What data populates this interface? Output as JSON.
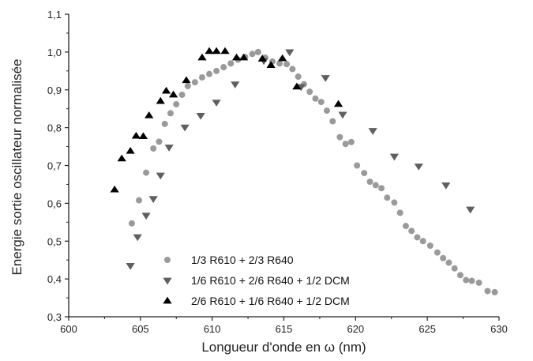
{
  "chart_data": {
    "type": "scatter",
    "xlabel": "Longueur d'onde en ω (nm)",
    "ylabel": "Energie sortie oscillateur normalisée",
    "xlim": [
      600,
      630
    ],
    "ylim": [
      0.3,
      1.1
    ],
    "x_ticks": [
      "600",
      "605",
      "610",
      "615",
      "620",
      "625",
      "630"
    ],
    "y_ticks": [
      "0,3",
      "0,4",
      "0,5",
      "0,6",
      "0,7",
      "0,8",
      "0,9",
      "1,0",
      "1,1"
    ],
    "grid": false,
    "legend_position": "bottom-center",
    "series": [
      {
        "name": "1/3 R610 + 2/3 R640",
        "marker": "circle",
        "color": "#9a9a9a",
        "points": [
          [
            604.4,
            0.547
          ],
          [
            604.9,
            0.608
          ],
          [
            605.4,
            0.681
          ],
          [
            605.9,
            0.745
          ],
          [
            606.3,
            0.763
          ],
          [
            606.7,
            0.81
          ],
          [
            607.1,
            0.838
          ],
          [
            607.5,
            0.862
          ],
          [
            607.9,
            0.887
          ],
          [
            608.3,
            0.91
          ],
          [
            608.8,
            0.92
          ],
          [
            609.3,
            0.933
          ],
          [
            609.8,
            0.942
          ],
          [
            610.3,
            0.95
          ],
          [
            610.8,
            0.96
          ],
          [
            611.3,
            0.97
          ],
          [
            611.8,
            0.98
          ],
          [
            612.3,
            0.987
          ],
          [
            612.8,
            0.995
          ],
          [
            613.2,
            1.0
          ],
          [
            613.7,
            0.985
          ],
          [
            614.2,
            0.975
          ],
          [
            614.7,
            0.97
          ],
          [
            615.2,
            0.968
          ],
          [
            615.6,
            0.955
          ],
          [
            616.0,
            0.935
          ],
          [
            616.4,
            0.915
          ],
          [
            616.8,
            0.895
          ],
          [
            617.2,
            0.877
          ],
          [
            617.6,
            0.868
          ],
          [
            618.0,
            0.845
          ],
          [
            618.4,
            0.817
          ],
          [
            618.9,
            0.775
          ],
          [
            619.3,
            0.757
          ],
          [
            619.7,
            0.762
          ],
          [
            620.1,
            0.7
          ],
          [
            620.6,
            0.68
          ],
          [
            621.0,
            0.657
          ],
          [
            621.4,
            0.648
          ],
          [
            621.8,
            0.64
          ],
          [
            622.2,
            0.615
          ],
          [
            622.7,
            0.602
          ],
          [
            623.1,
            0.575
          ],
          [
            623.5,
            0.54
          ],
          [
            623.9,
            0.527
          ],
          [
            624.3,
            0.51
          ],
          [
            624.7,
            0.5
          ],
          [
            625.2,
            0.488
          ],
          [
            625.7,
            0.47
          ],
          [
            626.1,
            0.455
          ],
          [
            626.5,
            0.443
          ],
          [
            626.9,
            0.428
          ],
          [
            627.3,
            0.41
          ],
          [
            627.7,
            0.397
          ],
          [
            628.1,
            0.395
          ],
          [
            628.6,
            0.39
          ],
          [
            629.2,
            0.368
          ],
          [
            629.7,
            0.365
          ]
        ]
      },
      {
        "name": "1/6 R610 + 2/6 R640 + 1/2 DCM",
        "marker": "triangle-down",
        "color": "#5f5f5f",
        "points": [
          [
            604.3,
            0.435
          ],
          [
            604.8,
            0.511
          ],
          [
            605.4,
            0.568
          ],
          [
            605.9,
            0.612
          ],
          [
            606.4,
            0.674
          ],
          [
            607.0,
            0.748
          ],
          [
            608.1,
            0.801
          ],
          [
            609.2,
            0.832
          ],
          [
            610.3,
            0.867
          ],
          [
            611.6,
            0.915
          ],
          [
            613.6,
            0.977
          ],
          [
            615.4,
            1.0
          ],
          [
            616.2,
            0.908
          ],
          [
            617.9,
            0.932
          ],
          [
            619.1,
            0.835
          ],
          [
            621.2,
            0.792
          ],
          [
            622.7,
            0.724
          ],
          [
            624.4,
            0.698
          ],
          [
            626.3,
            0.648
          ],
          [
            628.0,
            0.584
          ]
        ]
      },
      {
        "name": "2/6 R610 + 1/6 R640 + 1/2 DCM",
        "marker": "triangle-up",
        "color": "#000000",
        "points": [
          [
            603.2,
            0.636
          ],
          [
            603.7,
            0.718
          ],
          [
            604.3,
            0.738
          ],
          [
            604.7,
            0.778
          ],
          [
            605.2,
            0.777
          ],
          [
            605.6,
            0.832
          ],
          [
            606.4,
            0.87
          ],
          [
            606.8,
            0.897
          ],
          [
            607.3,
            0.887
          ],
          [
            608.2,
            0.925
          ],
          [
            609.3,
            0.985
          ],
          [
            609.8,
            1.002
          ],
          [
            610.3,
            1.002
          ],
          [
            610.9,
            1.002
          ],
          [
            611.7,
            0.985
          ],
          [
            612.2,
            0.985
          ],
          [
            613.5,
            0.982
          ],
          [
            614.1,
            0.965
          ],
          [
            614.9,
            0.983
          ],
          [
            615.9,
            0.908
          ],
          [
            618.8,
            0.862
          ]
        ]
      }
    ]
  }
}
